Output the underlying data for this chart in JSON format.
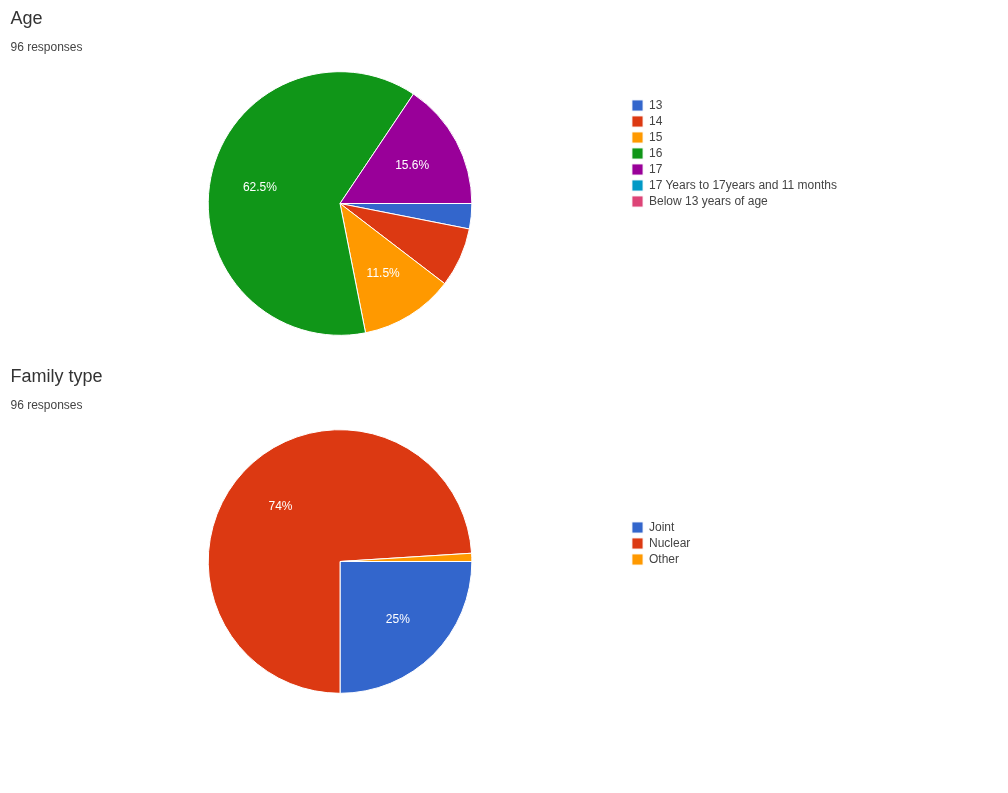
{
  "chart_data": [
    {
      "type": "pie",
      "title": "Age",
      "subtitle": "96 responses",
      "categories": [
        "13",
        "14",
        "15",
        "16",
        "17",
        "17 Years to 17years and 11 months",
        "Below 13 years of age"
      ],
      "values": [
        3.1,
        7.3,
        11.5,
        62.5,
        15.6,
        0,
        0
      ],
      "colors": [
        "#3366cc",
        "#dc3912",
        "#ff9900",
        "#109618",
        "#990099",
        "#0099c6",
        "#dd4477"
      ],
      "value_labels": [
        null,
        null,
        "11.5%",
        "62.5%",
        "15.6%",
        null,
        null
      ],
      "legend": "right"
    },
    {
      "type": "pie",
      "title": "Family type",
      "subtitle": "96 responses",
      "categories": [
        "Joint",
        "Nuclear",
        "Other"
      ],
      "values": [
        25,
        74,
        1
      ],
      "colors": [
        "#3366cc",
        "#dc3912",
        "#ff9900"
      ],
      "value_labels": [
        "25%",
        "74%",
        null
      ],
      "legend": "right"
    }
  ]
}
